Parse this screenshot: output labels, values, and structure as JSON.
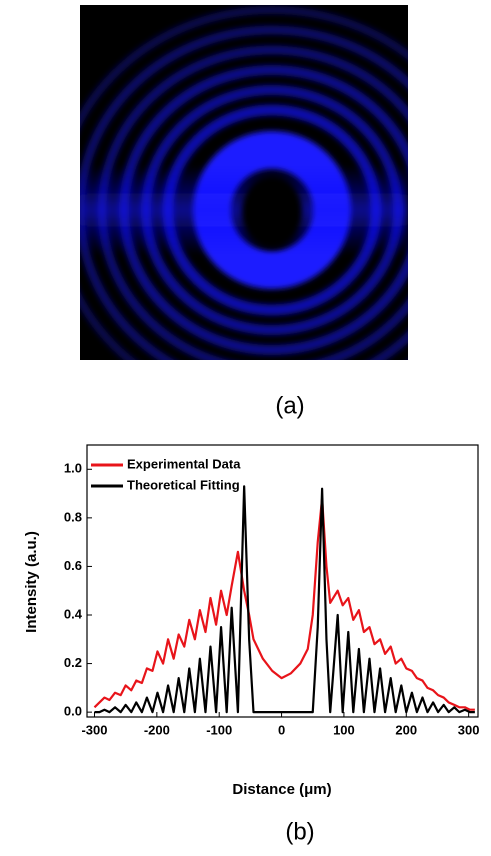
{
  "panel_labels": [
    "(a)",
    "(b)"
  ],
  "chart_data": {
    "type": "line",
    "xlabel": "Distance (μm)",
    "ylabel": "Intensity (a.u.)",
    "x": [
      -300,
      -292,
      -284,
      -276,
      -267,
      -258,
      -250,
      -241,
      -233,
      -224,
      -216,
      -207,
      -199,
      -190,
      -182,
      -173,
      -165,
      -156,
      -148,
      -139,
      -131,
      -122,
      -114,
      -105,
      -97,
      -88,
      -80,
      -70,
      -60,
      -52,
      -45,
      -30,
      -15,
      0,
      15,
      30,
      42,
      50,
      58,
      65,
      72,
      78,
      90,
      98,
      107,
      115,
      124,
      132,
      141,
      149,
      158,
      166,
      175,
      183,
      192,
      200,
      209,
      217,
      226,
      234,
      243,
      251,
      260,
      268,
      277,
      285,
      294,
      302,
      310
    ],
    "series": [
      {
        "name": "Experimental Data",
        "color": "#e8141a",
        "values": [
          0.02,
          0.04,
          0.06,
          0.05,
          0.08,
          0.07,
          0.11,
          0.09,
          0.13,
          0.12,
          0.18,
          0.17,
          0.25,
          0.2,
          0.3,
          0.22,
          0.32,
          0.27,
          0.38,
          0.3,
          0.42,
          0.33,
          0.47,
          0.36,
          0.5,
          0.4,
          0.52,
          0.66,
          0.5,
          0.4,
          0.3,
          0.22,
          0.17,
          0.14,
          0.16,
          0.2,
          0.26,
          0.4,
          0.7,
          0.88,
          0.6,
          0.45,
          0.5,
          0.44,
          0.47,
          0.38,
          0.42,
          0.33,
          0.35,
          0.28,
          0.3,
          0.24,
          0.27,
          0.2,
          0.22,
          0.18,
          0.17,
          0.14,
          0.13,
          0.1,
          0.09,
          0.07,
          0.06,
          0.04,
          0.03,
          0.02,
          0.02,
          0.01,
          0.01
        ]
      },
      {
        "name": "Theoretical Fitting",
        "color": "#000000",
        "values": [
          0,
          0,
          0.01,
          0,
          0.02,
          0,
          0.03,
          0,
          0.04,
          0,
          0.06,
          0,
          0.08,
          0,
          0.11,
          0,
          0.14,
          0,
          0.18,
          0,
          0.22,
          0,
          0.27,
          0,
          0.35,
          0,
          0.43,
          0,
          0.93,
          0.3,
          0,
          0,
          0,
          0,
          0,
          0,
          0,
          0,
          0.35,
          0.92,
          0.3,
          0,
          0.4,
          0,
          0.33,
          0,
          0.26,
          0,
          0.22,
          0,
          0.18,
          0,
          0.14,
          0,
          0.11,
          0,
          0.08,
          0,
          0.06,
          0,
          0.04,
          0,
          0.03,
          0,
          0.02,
          0,
          0.01,
          0,
          0
        ]
      }
    ],
    "xlim": [
      -312,
      315
    ],
    "ylim": [
      -0.02,
      1.1
    ],
    "xticks": [
      -300,
      -200,
      -100,
      0,
      100,
      200,
      300
    ],
    "yticks": [
      {
        "value": 0,
        "label": "0.0"
      },
      {
        "value": 0.2,
        "label": "0.2"
      },
      {
        "value": 0.4,
        "label": "0.4"
      },
      {
        "value": 0.6,
        "label": "0.6"
      },
      {
        "value": 0.8,
        "label": "0.8"
      },
      {
        "value": 1.0,
        "label": "1.0"
      }
    ],
    "legend": "upper-left"
  }
}
